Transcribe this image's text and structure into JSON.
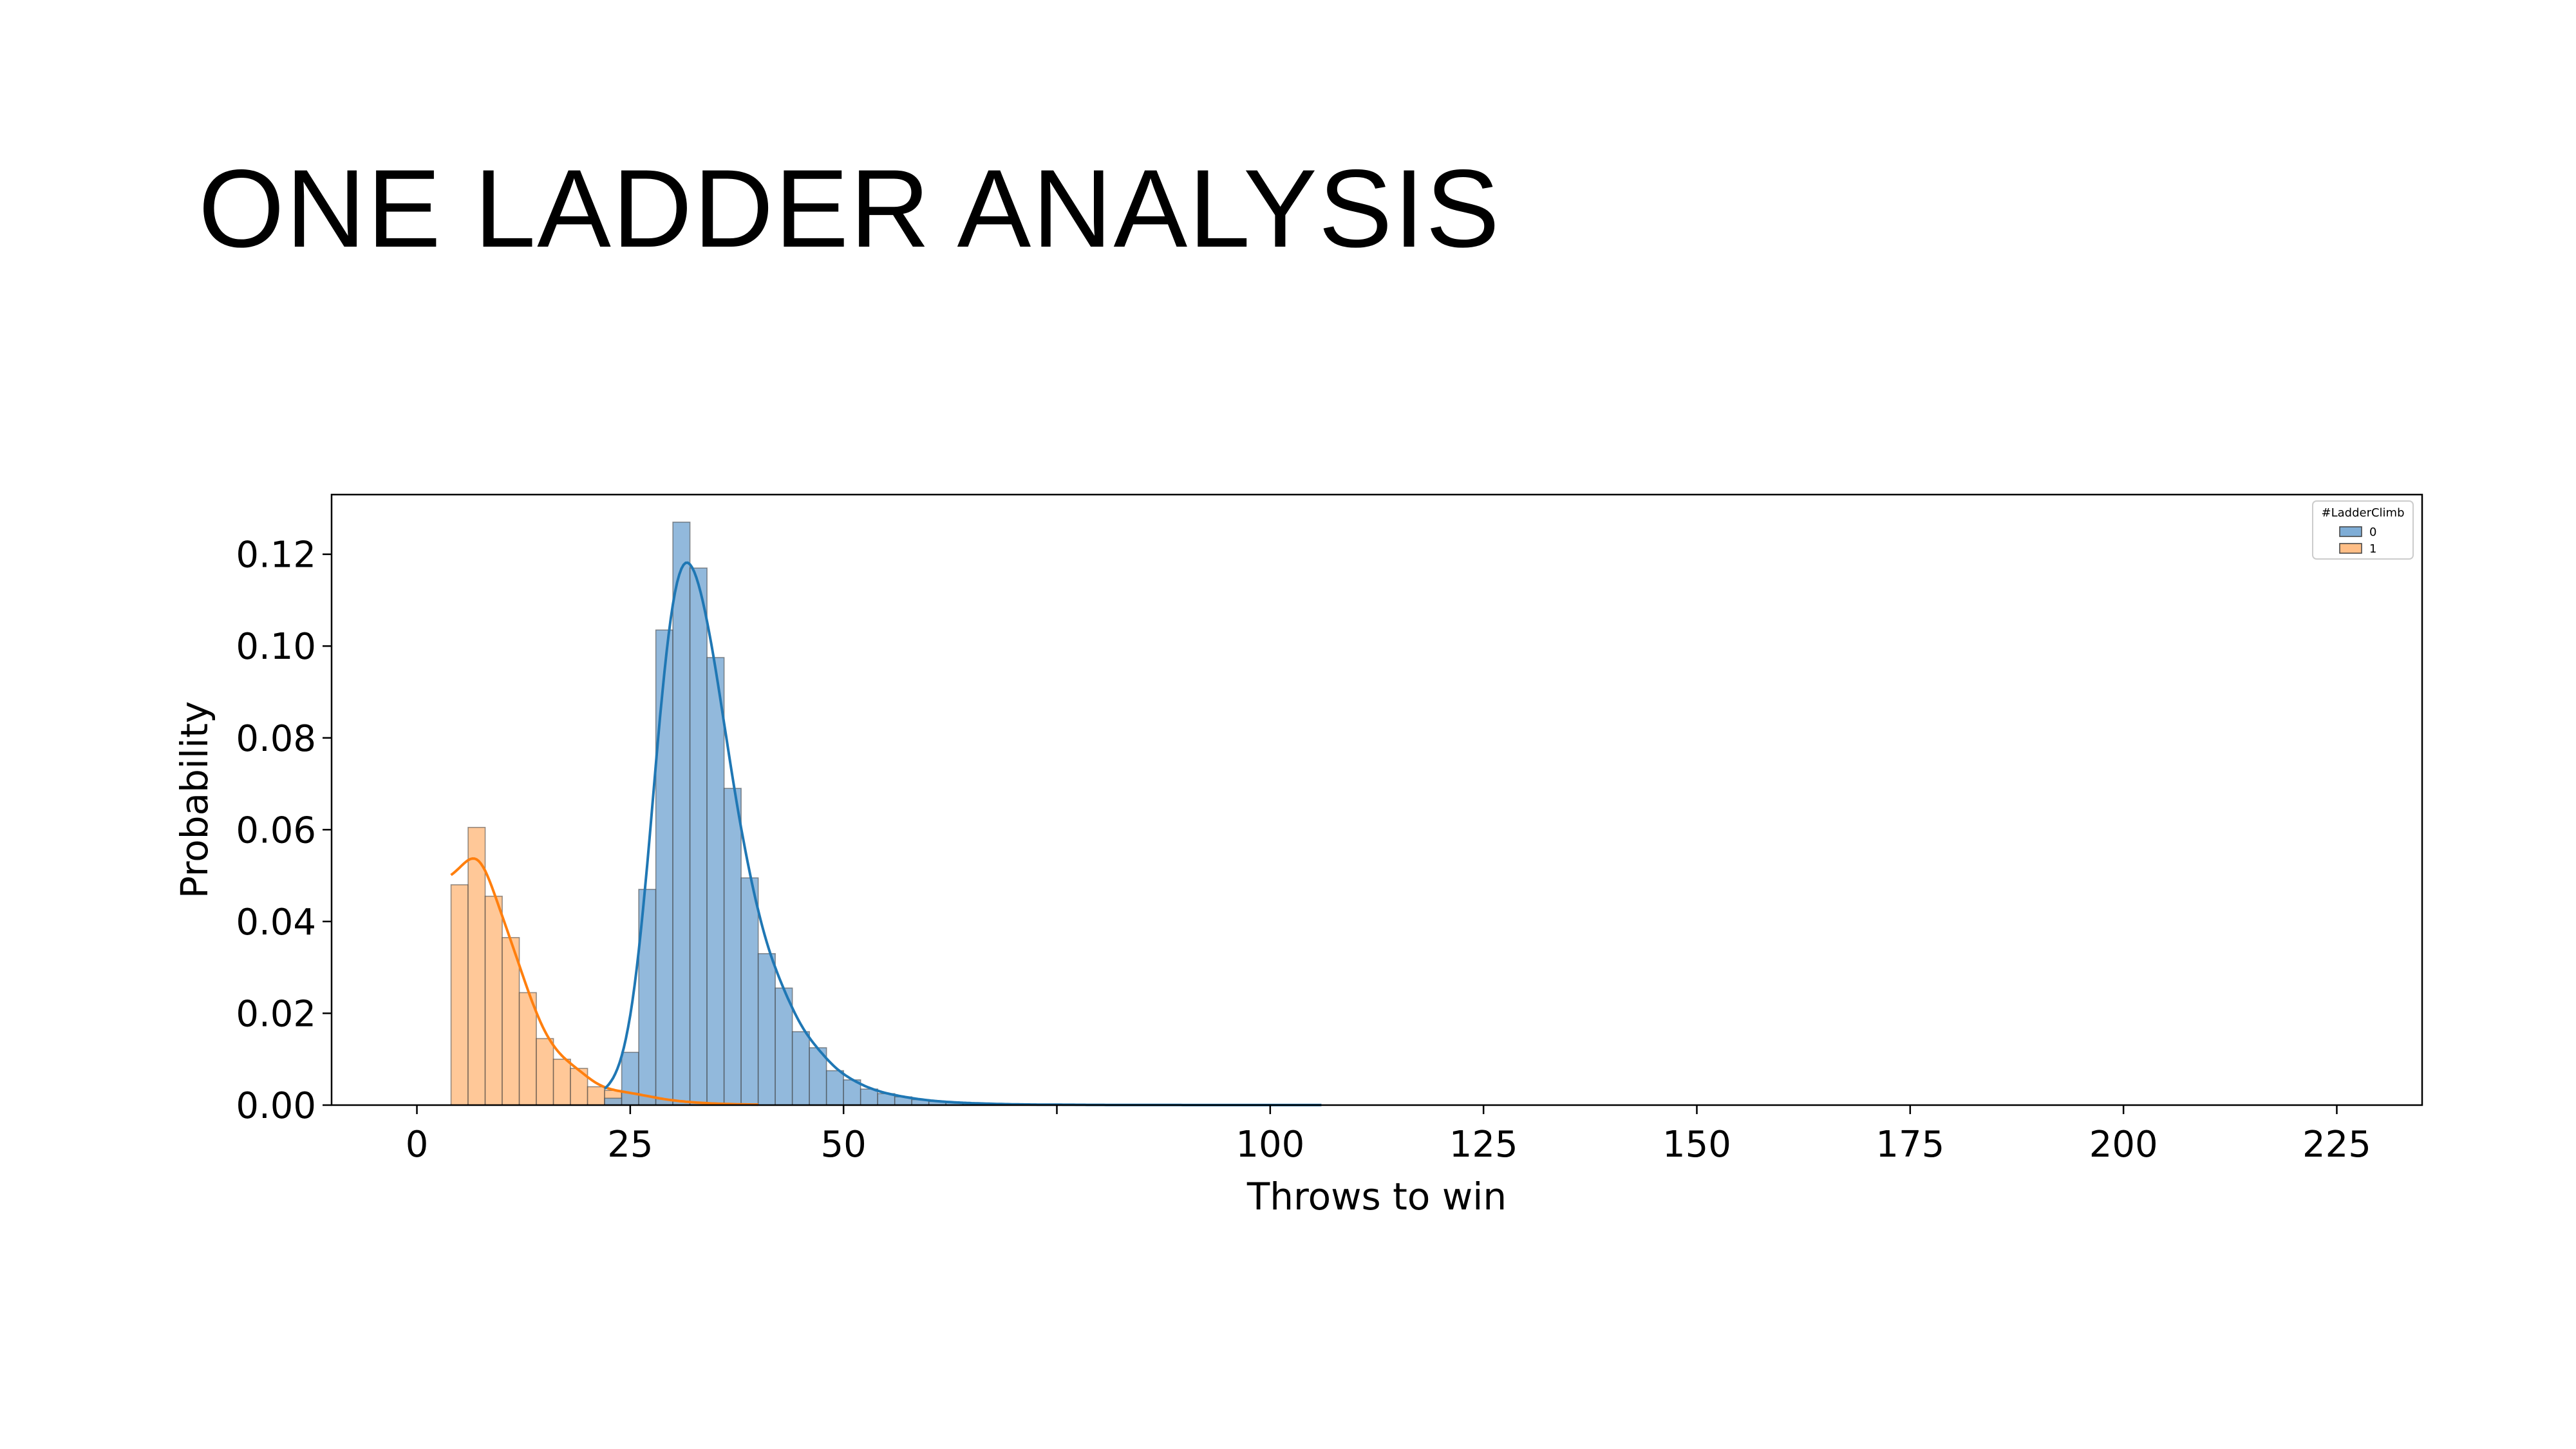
{
  "slide": {
    "title": "ONE LADDER ANALYSIS"
  },
  "chart_data": {
    "type": "bar",
    "subtype": "histogram-with-kde",
    "xlabel": "Throws to win",
    "ylabel": "Probability",
    "xlim": [
      -10,
      235
    ],
    "ylim": [
      0,
      0.133
    ],
    "xticks": [
      0,
      25,
      50,
      75,
      100,
      125,
      150,
      175,
      200,
      225
    ],
    "xtick_labels": [
      "0",
      "25",
      "50",
      "",
      "100",
      "125",
      "150",
      "175",
      "200",
      "225"
    ],
    "yticks": [
      0,
      0.02,
      0.04,
      0.06,
      0.08,
      0.1,
      0.12
    ],
    "ytick_labels": [
      "0.00",
      "0.02",
      "0.04",
      "0.06",
      "0.08",
      "0.10",
      "0.12"
    ],
    "bin_width": 2,
    "grid": false,
    "legend": {
      "title": "#LadderClimb",
      "placement": "top-right"
    },
    "series": [
      {
        "name": "0",
        "color": "#1f77b4",
        "fill": "#7fadd6",
        "bin_start": 22,
        "values": [
          0.0015,
          0.0115,
          0.047,
          0.1035,
          0.127,
          0.117,
          0.0975,
          0.069,
          0.0495,
          0.033,
          0.0255,
          0.016,
          0.0125,
          0.0075,
          0.0055,
          0.0035,
          0.0025,
          0.0018,
          0.0012,
          0.0008,
          0.0006,
          0.0004,
          0.0003,
          0.0002,
          0.00015,
          0.0001,
          0.0001,
          8e-05,
          5e-05,
          5e-05,
          4e-05,
          3e-05,
          3e-05,
          2e-05,
          2e-05,
          1e-05,
          1e-05,
          1e-05,
          1e-05,
          1e-05,
          1e-05,
          1e-05
        ]
      },
      {
        "name": "1",
        "color": "#ff7f0e",
        "fill": "#ffbe86",
        "bin_start": 4,
        "values": [
          0.048,
          0.0605,
          0.0455,
          0.0365,
          0.0245,
          0.0145,
          0.01,
          0.008,
          0.004,
          0.0032,
          0.0027,
          0.002,
          0.0012,
          0.0008,
          0.0005,
          0.0003,
          0.0002,
          0.0001
        ]
      }
    ]
  }
}
